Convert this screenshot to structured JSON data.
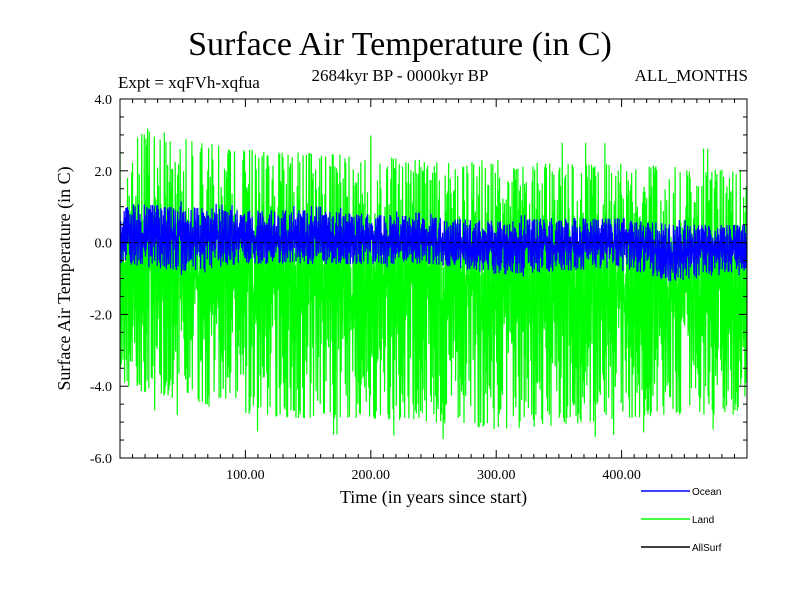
{
  "chart_data": {
    "type": "line",
    "title": "Surface Air Temperature (in C)",
    "subtitle_left": "Expt = xqFVh-xqfua",
    "subtitle_center": "2684kyr BP - 0000kyr BP",
    "subtitle_right": "ALL_MONTHS",
    "xlabel": "Time (in years since start)",
    "ylabel": "Surface Air Temperature (in C)",
    "xlim": [
      0,
      500
    ],
    "ylim": [
      -6.0,
      4.0
    ],
    "xticks": [
      100,
      200,
      300,
      400
    ],
    "xtick_labels": [
      "100.00",
      "200.00",
      "300.00",
      "400.00"
    ],
    "yticks": [
      4.0,
      2.0,
      0.0,
      -2.0,
      -4.0,
      -6.0
    ],
    "ytick_labels": [
      "4.0",
      "2.0",
      "0.0",
      "-2.0",
      "-4.0",
      "-6.0"
    ],
    "zero_line": 0.0,
    "series": [
      {
        "name": "Land",
        "color": "#00ff00",
        "description_range": [
          -5.5,
          3.3
        ],
        "band_top_anchors": [
          [
            0,
            2.6
          ],
          [
            25,
            3.3
          ],
          [
            50,
            2.9
          ],
          [
            100,
            2.6
          ],
          [
            150,
            2.5
          ],
          [
            200,
            2.4
          ],
          [
            250,
            2.3
          ],
          [
            300,
            2.3
          ],
          [
            350,
            2.2
          ],
          [
            400,
            2.2
          ],
          [
            450,
            2.1
          ],
          [
            500,
            2.0
          ]
        ],
        "band_bottom_anchors": [
          [
            0,
            -4.0
          ],
          [
            50,
            -4.4
          ],
          [
            100,
            -4.8
          ],
          [
            150,
            -4.9
          ],
          [
            200,
            -4.9
          ],
          [
            250,
            -5.0
          ],
          [
            300,
            -5.2
          ],
          [
            350,
            -5.1
          ],
          [
            400,
            -4.9
          ],
          [
            450,
            -4.8
          ],
          [
            500,
            -4.8
          ]
        ]
      },
      {
        "name": "Ocean",
        "color": "#0000ff",
        "band_top_anchors": [
          [
            0,
            1.1
          ],
          [
            50,
            1.0
          ],
          [
            100,
            0.9
          ],
          [
            150,
            0.9
          ],
          [
            200,
            0.8
          ],
          [
            250,
            0.7
          ],
          [
            300,
            0.6
          ],
          [
            350,
            0.7
          ],
          [
            400,
            0.7
          ],
          [
            440,
            0.5
          ],
          [
            500,
            0.5
          ]
        ],
        "band_bottom_anchors": [
          [
            0,
            -0.6
          ],
          [
            50,
            -0.8
          ],
          [
            100,
            -0.6
          ],
          [
            150,
            -0.6
          ],
          [
            200,
            -0.6
          ],
          [
            250,
            -0.6
          ],
          [
            300,
            -0.9
          ],
          [
            350,
            -0.8
          ],
          [
            400,
            -0.7
          ],
          [
            440,
            -1.1
          ],
          [
            500,
            -0.8
          ]
        ]
      },
      {
        "name": "AllSurf",
        "color": "#000000",
        "constant": 0.0
      }
    ],
    "legend": [
      {
        "name": "Ocean",
        "color": "#0000ff"
      },
      {
        "name": "Land",
        "color": "#00ff00"
      },
      {
        "name": "AllSurf",
        "color": "#000000"
      }
    ],
    "legend_position": "bottom-right",
    "seed": 7
  }
}
